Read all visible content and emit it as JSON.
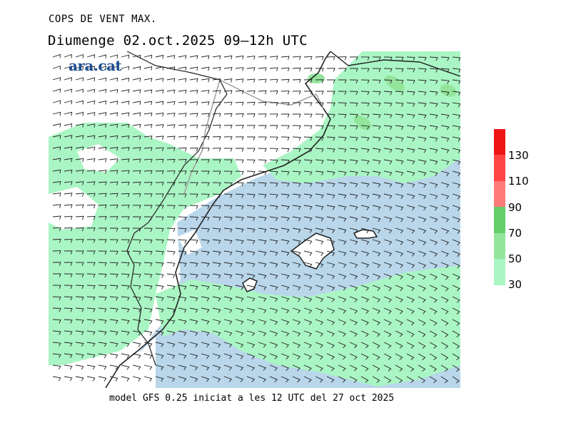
{
  "title": "COPS DE VENT MAX.",
  "subtitle": "Diumenge  02.oct.2025 09–12h UTC",
  "logo_text": "ara.cat",
  "footer": "model GFS 0.25 iniciat a les 12 UTC del 27 oct 2025",
  "legend": {
    "unit": "",
    "levels": [
      "30",
      "50",
      "70",
      "90",
      "110",
      "130"
    ],
    "colors": {
      "below_30": "#b9d6ea",
      "30_50": "#aaf5c4",
      "50_70": "#93e59b",
      "70_90": "#62cf67",
      "90_110": "#ff7a7a",
      "110_130": "#ff4444",
      "above_130": "#f01515"
    }
  },
  "map_colors": {
    "sea_calm": "#b9d6ea",
    "gust_30_50": "#aaf5c4",
    "gust_50_70": "#93e59b",
    "land_calm": "#ffffff",
    "coast": "#222222",
    "border": "#999999"
  }
}
